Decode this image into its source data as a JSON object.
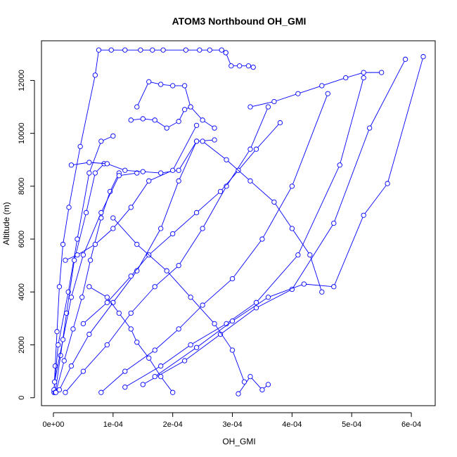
{
  "chart_data": {
    "type": "scatter",
    "title": "ATOM3 Northbound OH_GMI",
    "xlabel": "OH_GMI",
    "ylabel": "Altitude (m)",
    "xlim": [
      -2e-05,
      0.00064
    ],
    "ylim": [
      -300,
      13500
    ],
    "x_ticks": [
      0,
      0.0001,
      0.0002,
      0.0003,
      0.0004,
      0.0005,
      0.0006
    ],
    "x_tick_labels": [
      "0e+00",
      "1e-04",
      "2e-04",
      "3e-04",
      "4e-04",
      "5e-04",
      "6e-04"
    ],
    "y_ticks": [
      0,
      2000,
      4000,
      6000,
      8000,
      10000,
      12000
    ],
    "y_tick_labels": [
      "0",
      "2000",
      "4000",
      "6000",
      "8000",
      "10000",
      "12000"
    ],
    "grid": false,
    "legend": "none",
    "series_color": "#0000ff",
    "series": [
      {
        "x": [
          1e-06,
          3e-06,
          6e-06,
          1e-05,
          1.6e-05,
          2.6e-05,
          4.5e-05,
          7e-05,
          7.6e-05,
          9.7e-05,
          0.00012,
          0.000146,
          0.000166,
          0.000184,
          0.000222,
          0.000245,
          0.000262,
          0.000282,
          0.000289
        ],
        "y": [
          200,
          1200,
          2500,
          4200,
          5800,
          7200,
          9500,
          12200,
          13150,
          13150,
          13150,
          13150,
          13150,
          13150,
          13150,
          13150,
          13150,
          13150,
          13050
        ]
      },
      {
        "x": [
          0.000289,
          0.000298,
          0.000312,
          0.000327,
          0.000335
        ],
        "y": [
          13050,
          12550,
          12550,
          12550,
          12500
        ]
      },
      {
        "x": [
          1e-06,
          8e-06,
          2.5e-05,
          4e-05,
          6e-05,
          8e-05,
          0.0001
        ],
        "y": [
          300,
          2000,
          4000,
          6000,
          8500,
          9700,
          9900
        ]
      },
      {
        "x": [
          3e-06,
          1.2e-05,
          2.2e-05,
          3.5e-05,
          5.5e-05,
          7e-05,
          8.5e-05
        ],
        "y": [
          200,
          1600,
          3200,
          5200,
          7000,
          8500,
          8850
        ]
      },
      {
        "x": [
          4e-06,
          1.8e-05,
          3.3e-05,
          4.8e-05,
          6.2e-05,
          8e-05,
          9.5e-05,
          0.00011
        ],
        "y": [
          200,
          1400,
          2600,
          3800,
          5200,
          6800,
          7800,
          8500
        ]
      },
      {
        "x": [
          2e-06,
          1.6e-05,
          3e-05,
          5e-05,
          8e-05,
          0.00011,
          0.00014
        ],
        "y": [
          600,
          2200,
          3800,
          5400,
          7000,
          8400,
          8500
        ]
      },
      {
        "x": [
          1e-05,
          3e-05,
          6e-05,
          0.0001,
          0.00014,
          0.00018,
          0.00021,
          0.00024
        ],
        "y": [
          300,
          1200,
          2400,
          3600,
          4800,
          6400,
          8200,
          9700
        ]
      },
      {
        "x": [
          2e-05,
          5e-05,
          9e-05,
          0.00013,
          0.00017,
          0.00021,
          0.00025,
          0.00029,
          0.00033,
          0.00036
        ],
        "y": [
          200,
          1000,
          2000,
          3200,
          4200,
          5000,
          6400,
          8000,
          9400,
          11000
        ]
      },
      {
        "x": [
          0.00031,
          0.00033,
          0.00035,
          0.00036
        ],
        "y": [
          150,
          800,
          300,
          500
        ]
      },
      {
        "x": [
          8e-05,
          0.00012,
          0.00017,
          0.00021,
          0.00025,
          0.0003,
          0.00035,
          0.0004,
          0.00046
        ],
        "y": [
          200,
          1000,
          1800,
          2600,
          3500,
          4500,
          6000,
          8000,
          11500
        ]
      },
      {
        "x": [
          0.00012,
          0.00018,
          0.00023,
          0.00029,
          0.00034,
          0.00041,
          0.00048,
          0.00052
        ],
        "y": [
          400,
          1200,
          2000,
          2800,
          3600,
          5400,
          8800,
          12100
        ]
      },
      {
        "x": [
          0.00015,
          0.00022,
          0.00028,
          0.00034,
          0.0004,
          0.00047,
          0.00053,
          0.00059
        ],
        "y": [
          500,
          1400,
          2400,
          3400,
          4100,
          6600,
          10200,
          12800
        ]
      },
      {
        "x": [
          0.00017,
          0.00024,
          0.0003,
          0.00036,
          0.00042,
          0.00047,
          0.00052,
          0.00056,
          0.00062
        ],
        "y": [
          800,
          1900,
          2900,
          3800,
          4300,
          4200,
          6900,
          8100,
          12900
        ]
      },
      {
        "x": [
          5e-05,
          9e-05,
          0.00013,
          0.00016,
          0.0002,
          0.00024,
          0.00028,
          0.00031,
          0.00034,
          0.00038
        ],
        "y": [
          2800,
          3600,
          4600,
          5400,
          6200,
          7000,
          7800,
          8600,
          9400,
          10400
        ]
      },
      {
        "x": [
          0.00014,
          0.00016,
          0.00018,
          0.0002,
          0.00022,
          0.00023,
          0.00025,
          0.00027
        ],
        "y": [
          11000,
          11950,
          11850,
          11800,
          11800,
          11000,
          10500,
          10200
        ]
      },
      {
        "x": [
          0.00013,
          0.00015,
          0.00017,
          0.00019,
          0.00021,
          0.00022,
          0.00023
        ],
        "y": [
          10500,
          10550,
          10500,
          10200,
          10450,
          10900,
          11000
        ]
      },
      {
        "x": [
          3e-05,
          6e-05,
          9e-05,
          0.00012,
          0.00015,
          0.00018,
          0.00021,
          0.00024,
          0.00027
        ],
        "y": [
          8800,
          8900,
          8850,
          8600,
          8550,
          8500,
          8600,
          9700,
          9750
        ]
      },
      {
        "x": [
          6e-05,
          9e-05,
          0.00011,
          0.00013,
          0.00014,
          0.00016,
          0.00018,
          0.0002
        ],
        "y": [
          4200,
          3800,
          3200,
          2600,
          2100,
          1500,
          800,
          200
        ]
      },
      {
        "x": [
          0.0001,
          0.00014,
          0.00019,
          0.00023,
          0.00027,
          0.0003,
          0.00032
        ],
        "y": [
          6800,
          5800,
          4800,
          3800,
          2800,
          1800,
          600
        ]
      },
      {
        "x": [
          2e-05,
          4e-05,
          7e-05,
          0.0001,
          0.00013,
          0.00016,
          0.0002,
          0.00024
        ],
        "y": [
          5200,
          5400,
          5800,
          6400,
          7200,
          8200,
          8600,
          10300
        ]
      },
      {
        "x": [
          0.00033,
          0.00037,
          0.00041,
          0.00045,
          0.00049,
          0.00052,
          0.00055
        ],
        "y": [
          11000,
          11200,
          11500,
          11800,
          12100,
          12300,
          12300
        ]
      },
      {
        "x": [
          0.00025,
          0.00029,
          0.00033,
          0.00037,
          0.0004,
          0.00043,
          0.00045
        ],
        "y": [
          9700,
          9000,
          8200,
          7400,
          6400,
          5400,
          4000
        ]
      }
    ]
  }
}
